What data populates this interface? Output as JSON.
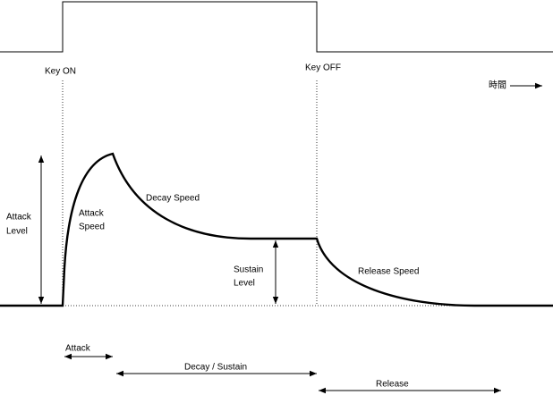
{
  "gate": {
    "key_on": "Key ON",
    "key_off": "Key OFF"
  },
  "time_label": "時間",
  "envelope": {
    "attack_level": [
      "Attack",
      "Level"
    ],
    "attack_speed": [
      "Attack",
      "Speed"
    ],
    "decay_speed": "Decay Speed",
    "sustain_level": [
      "Sustain",
      "Level"
    ],
    "release_speed": "Release Speed"
  },
  "phases": {
    "attack": "Attack",
    "decay_sustain": "Decay / Sustain",
    "release": "Release"
  }
}
